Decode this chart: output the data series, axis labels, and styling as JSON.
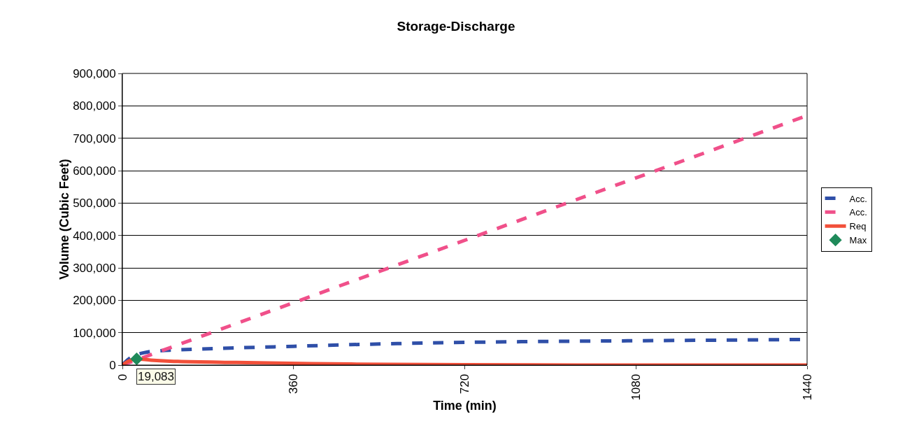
{
  "chart_data": {
    "type": "line",
    "title": "Storage-Discharge",
    "xlabel": "Time (min)",
    "ylabel": "Volume (Cubic Feet)",
    "xlim": [
      0,
      1440
    ],
    "xticks": [
      0,
      360,
      720,
      1080,
      1440
    ],
    "ylim": [
      0,
      900000
    ],
    "yticks": [
      0,
      {
        "value": 100000,
        "label": "100,000"
      },
      {
        "value": 200000,
        "label": "200,000"
      },
      {
        "value": 300000,
        "label": "300,000"
      },
      {
        "value": 400000,
        "label": "400,000"
      },
      {
        "value": 500000,
        "label": "500,000"
      },
      {
        "value": 600000,
        "label": "600,000"
      },
      {
        "value": 700000,
        "label": "700,000"
      },
      {
        "value": 800000,
        "label": "800,000"
      },
      {
        "value": 900000,
        "label": "900,000"
      }
    ],
    "grid": "y",
    "legend": "right",
    "marker": "none",
    "series": [
      {
        "name": "Acc.",
        "color": "#2f4fa8",
        "line_style": "dashed",
        "x": [
          0,
          10,
          20,
          30,
          45,
          60,
          100,
          150,
          240,
          360,
          480,
          600,
          720,
          900,
          1080,
          1260,
          1440
        ],
        "values": [
          0,
          15000,
          25000,
          32000,
          38000,
          42000,
          46000,
          49000,
          53000,
          58000,
          63000,
          67000,
          70000,
          73000,
          75000,
          77000,
          79000
        ]
      },
      {
        "name": "Acc.",
        "color": "#f0508a",
        "line_style": "dashed",
        "x": [
          0,
          1440
        ],
        "values": [
          0,
          770000
        ]
      },
      {
        "name": "Req",
        "color": "#f2503a",
        "line_style": "solid",
        "x": [
          0,
          10,
          20,
          30,
          60,
          100,
          240,
          480,
          720,
          1080,
          1440
        ],
        "values": [
          0,
          10000,
          16000,
          19000,
          15000,
          12000,
          8000,
          3000,
          1000,
          0,
          0
        ]
      },
      {
        "name": "Max",
        "color": "#1f8a5a",
        "type": "scatter",
        "marker": "diamond",
        "x": [
          30
        ],
        "values": [
          19083
        ],
        "value_labels": [
          "19,083"
        ]
      }
    ]
  }
}
